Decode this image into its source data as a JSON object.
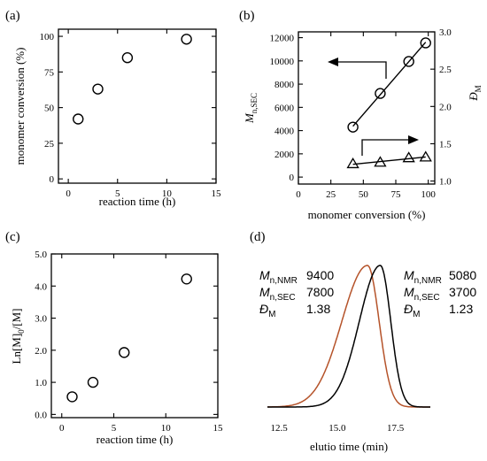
{
  "chart_data": [
    {
      "panel": "(a)",
      "type": "scatter",
      "xlabel": "reaction time (h)",
      "ylabel": "monomer conversion (%)",
      "xlim": [
        -1,
        15
      ],
      "ylim": [
        -3,
        105
      ],
      "xticks": [
        "0",
        "5",
        "10",
        "15"
      ],
      "yticks": [
        "0",
        "25",
        "50",
        "75",
        "100"
      ],
      "series": [
        {
          "marker": "circle",
          "x": [
            1,
            3,
            6,
            12
          ],
          "y": [
            42,
            63,
            85,
            98
          ]
        }
      ]
    },
    {
      "panel": "(b)",
      "type": "scatter",
      "xlabel": "monomer conversion (%)",
      "ylabel_left": {
        "main": "M",
        "sub": "n,SEC"
      },
      "ylabel_right": {
        "main": "Đ",
        "sub": "M"
      },
      "xlim": [
        0,
        105
      ],
      "ylim_left": [
        -600,
        12500
      ],
      "ylim_right": [
        0.96,
        3.0
      ],
      "xticks": [
        "0",
        "25",
        "50",
        "75",
        "100"
      ],
      "yticks_left": [
        "0",
        "2000",
        "4000",
        "6000",
        "8000",
        "10000",
        "12000"
      ],
      "yticks_right": [
        "1.0",
        "1.5",
        "2.0",
        "2.5",
        "3.0"
      ],
      "series": [
        {
          "axis": "left",
          "marker": "circle",
          "fit_line": true,
          "x": [
            42,
            63,
            85,
            98
          ],
          "y": [
            4300,
            7200,
            9950,
            11550
          ]
        },
        {
          "axis": "right",
          "marker": "triangle",
          "fit_line": true,
          "x": [
            42,
            63,
            85,
            98
          ],
          "y": [
            1.23,
            1.25,
            1.31,
            1.32
          ]
        }
      ],
      "annotations": [
        "left-pointing arrow linking circles to left axis",
        "right-pointing arrow linking triangles to right axis"
      ]
    },
    {
      "panel": "(c)",
      "type": "scatter",
      "xlabel": "reaction time (h)",
      "ylabel": {
        "main": "Ln[M]",
        "sub": "0",
        "tail": "/[M]"
      },
      "xlim": [
        -1,
        15
      ],
      "ylim": [
        -0.1,
        5.0
      ],
      "xticks": [
        "0",
        "5",
        "10",
        "15"
      ],
      "yticks": [
        "0.0",
        "1.0",
        "2.0",
        "3.0",
        "4.0",
        "5.0"
      ],
      "series": [
        {
          "marker": "circle",
          "x": [
            1,
            3,
            6,
            12
          ],
          "y": [
            0.55,
            1.0,
            1.93,
            4.22
          ]
        }
      ]
    },
    {
      "panel": "(d)",
      "type": "line",
      "xlabel": "elutio time (min)",
      "xlim": [
        12,
        19
      ],
      "xticks": [
        "12.5",
        "15.0",
        "17.5"
      ],
      "series": [
        {
          "color": "#b5532a",
          "peak_x": 16.3,
          "sigma_left": 1.1,
          "sigma_right": 0.5,
          "height": 1.0
        },
        {
          "color": "#000000",
          "peak_x": 16.85,
          "sigma_left": 0.9,
          "sigma_right": 0.45,
          "height": 1.0
        }
      ],
      "annotations": {
        "left": [
          {
            "label": "M",
            "sub": "n,NMR",
            "value": "9400"
          },
          {
            "label": "M",
            "sub": "n,SEC",
            "value": "7800"
          },
          {
            "label": "Đ",
            "sub": "M",
            "value": "1.38"
          }
        ],
        "right": [
          {
            "label": "M",
            "sub": "n,NMR",
            "value": "5080"
          },
          {
            "label": "M",
            "sub": "n,SEC",
            "value": "3700"
          },
          {
            "label": "Đ",
            "sub": "M",
            "value": "1.23"
          }
        ]
      }
    }
  ]
}
